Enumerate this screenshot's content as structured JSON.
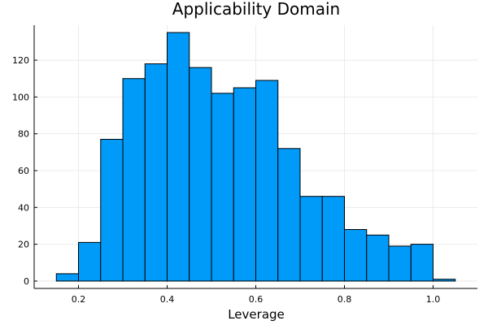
{
  "chart_data": {
    "type": "bar",
    "title": "Applicability Domain",
    "xlabel": "Leverage",
    "ylabel": "",
    "bar_color": "#009af9",
    "bin_width": 0.05,
    "bin_starts": [
      0.15,
      0.2,
      0.25,
      0.3,
      0.35,
      0.4,
      0.45,
      0.5,
      0.55,
      0.6,
      0.65,
      0.7,
      0.75,
      0.8,
      0.85,
      0.9,
      0.95,
      1.0
    ],
    "values": [
      4,
      21,
      77,
      110,
      118,
      135,
      116,
      102,
      105,
      109,
      72,
      46,
      46,
      28,
      25,
      19,
      20,
      1
    ],
    "xlim": [
      0.1,
      1.1
    ],
    "ylim": [
      -4,
      139
    ],
    "xticks": [
      0.2,
      0.4,
      0.6,
      0.8,
      1.0
    ],
    "xtick_labels": [
      "0.2",
      "0.4",
      "0.6",
      "0.8",
      "1.0"
    ],
    "yticks": [
      0,
      20,
      40,
      60,
      80,
      100,
      120
    ],
    "ytick_labels": [
      "0",
      "20",
      "40",
      "60",
      "80",
      "100",
      "120"
    ],
    "grid": true,
    "legend": "none"
  }
}
